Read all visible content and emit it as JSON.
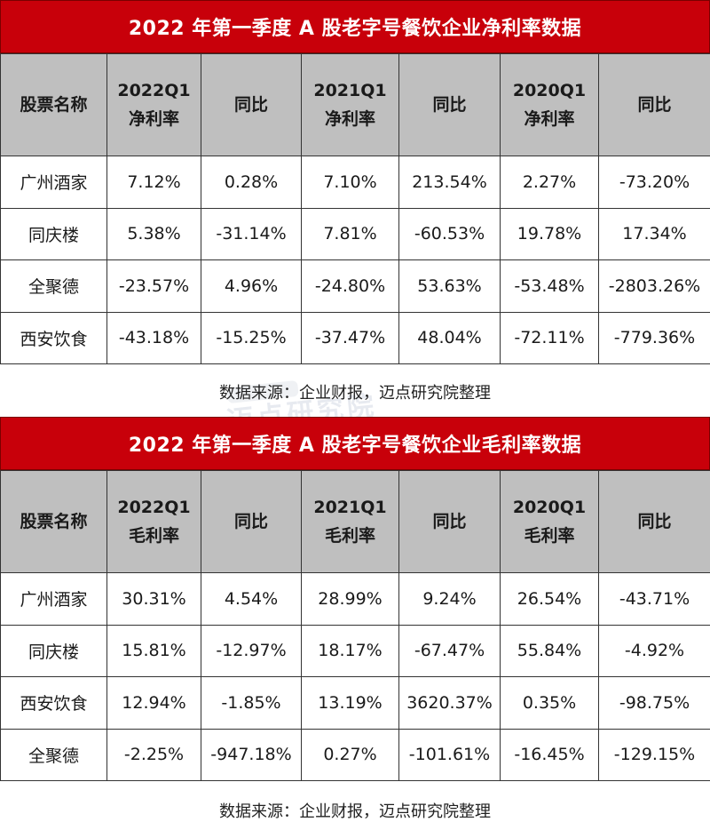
{
  "tables": [
    {
      "title": "2022 年第一季度 A 股老字号餐饮企业净利率数据",
      "headers": [
        {
          "line1": "股票名称",
          "line2": ""
        },
        {
          "line1": "2022Q1",
          "line2": "净利率"
        },
        {
          "line1": "同比",
          "line2": ""
        },
        {
          "line1": "2021Q1",
          "line2": "净利率"
        },
        {
          "line1": "同比",
          "line2": ""
        },
        {
          "line1": "2020Q1",
          "line2": "净利率"
        },
        {
          "line1": "同比",
          "line2": ""
        }
      ],
      "rows": [
        [
          "广州酒家",
          "7.12%",
          "0.28%",
          "7.10%",
          "213.54%",
          "2.27%",
          "-73.20%"
        ],
        [
          "同庆楼",
          "5.38%",
          "-31.14%",
          "7.81%",
          "-60.53%",
          "19.78%",
          "17.34%"
        ],
        [
          "全聚德",
          "-23.57%",
          "4.96%",
          "-24.80%",
          "53.63%",
          "-53.48%",
          "-2803.26%"
        ],
        [
          "西安饮食",
          "-43.18%",
          "-15.25%",
          "-37.47%",
          "48.04%",
          "-72.11%",
          "-779.36%"
        ]
      ],
      "source": "数据来源：企业财报，迈点研究院整理"
    },
    {
      "title": "2022 年第一季度 A 股老字号餐饮企业毛利率数据",
      "headers": [
        {
          "line1": "股票名称",
          "line2": ""
        },
        {
          "line1": "2022Q1",
          "line2": "毛利率"
        },
        {
          "line1": "同比",
          "line2": ""
        },
        {
          "line1": "2021Q1",
          "line2": "毛利率"
        },
        {
          "line1": "同比",
          "line2": ""
        },
        {
          "line1": "2020Q1",
          "line2": "毛利率"
        },
        {
          "line1": "同比",
          "line2": ""
        }
      ],
      "rows": [
        [
          "广州酒家",
          "30.31%",
          "4.54%",
          "28.99%",
          "9.24%",
          "26.54%",
          "-43.71%"
        ],
        [
          "同庆楼",
          "15.81%",
          "-12.97%",
          "18.17%",
          "-67.47%",
          "55.84%",
          "-4.92%"
        ],
        [
          "西安饮食",
          "12.94%",
          "-1.85%",
          "13.19%",
          "3620.37%",
          "0.35%",
          "-98.75%"
        ],
        [
          "全聚德",
          "-2.25%",
          "-947.18%",
          "0.27%",
          "-101.61%",
          "-16.45%",
          "-129.15%"
        ]
      ],
      "source": "数据来源：企业财报，迈点研究院整理"
    }
  ],
  "watermark": "迈点研究院",
  "colors": {
    "title_bg": "#c8000a",
    "header_bg": "#bfbfbf",
    "border": "#333333"
  }
}
